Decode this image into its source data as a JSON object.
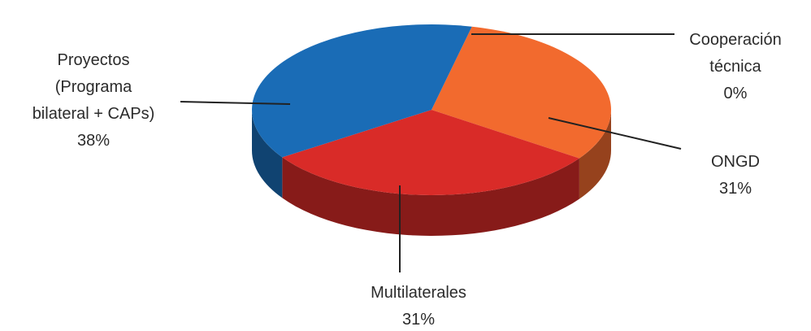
{
  "chart_data": {
    "type": "pie3d",
    "categories": [
      "Cooperación\ntécnica",
      "ONGD",
      "Multilaterales",
      "Proyectos\n(Programa\nbilateral + CAPs)"
    ],
    "values": [
      0,
      31,
      31,
      38
    ],
    "value_labels": [
      "0%",
      "31%",
      "31%",
      "38%"
    ],
    "colors": [
      "#2a7fc7",
      "#f26a2e",
      "#d92b28",
      "#1a6cb6"
    ]
  }
}
